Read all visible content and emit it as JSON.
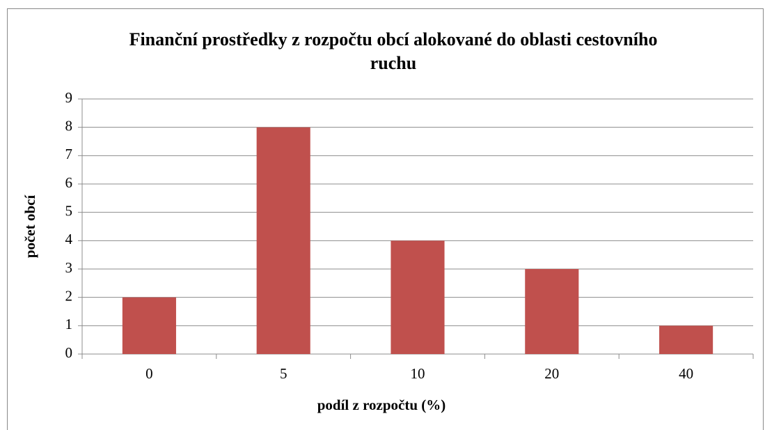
{
  "chart_data": {
    "type": "bar",
    "title": "Finanční prostředky z rozpočtu obcí alokované do oblasti cestovního ruchu",
    "x_label": "podíl z rozpočtu (%)",
    "y_label": "počet obcí",
    "categories": [
      "0",
      "5",
      "10",
      "20",
      "40"
    ],
    "values": [
      2,
      8,
      4,
      3,
      1
    ],
    "color": "#c0504d",
    "ylim": [
      0,
      9
    ],
    "yticks": [
      0,
      1,
      2,
      3,
      4,
      5,
      6,
      7,
      8,
      9
    ],
    "grid": true
  }
}
